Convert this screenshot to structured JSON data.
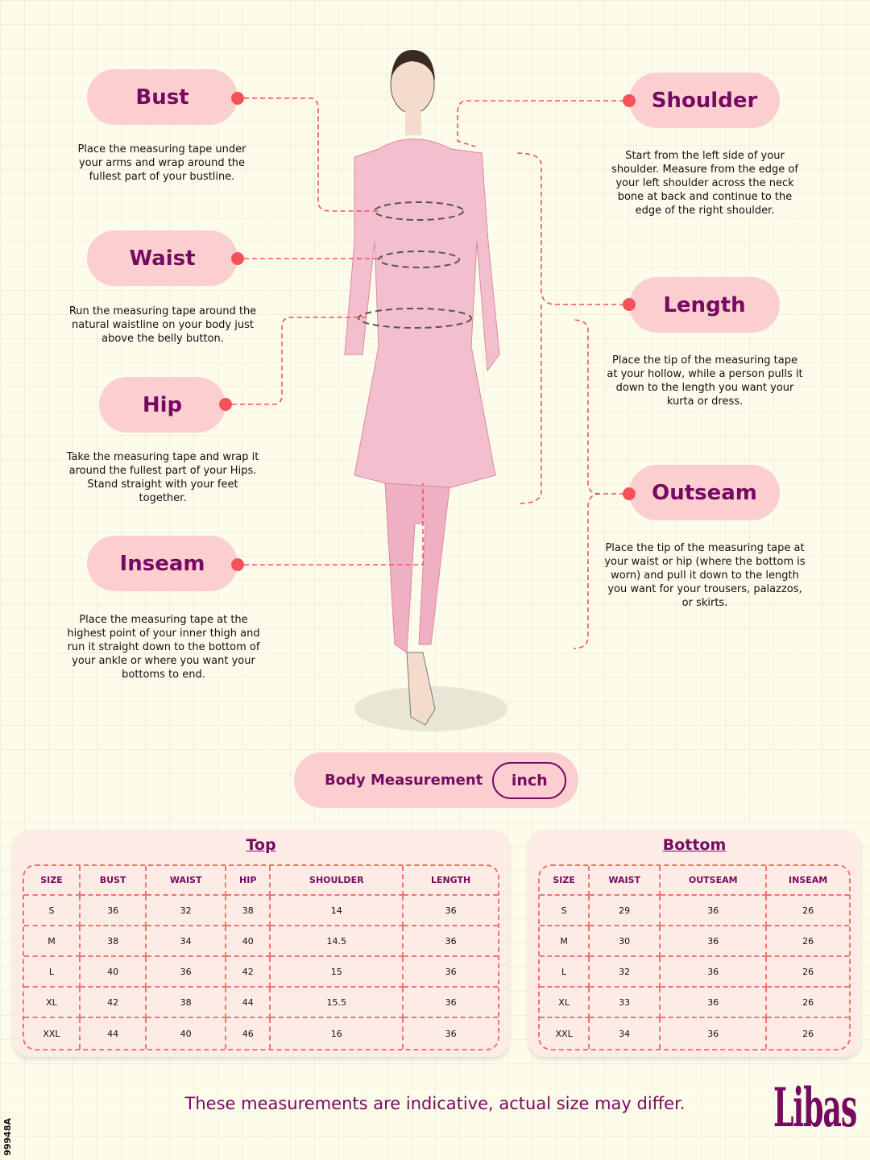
{
  "measurements": {
    "bust": {
      "label": "Bust",
      "text": "Place the measuring tape under your arms and wrap around the fullest part of your bustline."
    },
    "waist": {
      "label": "Waist",
      "text": "Run the measuring tape around the natural waistline on your body just above the belly button."
    },
    "hip": {
      "label": "Hip",
      "text": "Take the measuring tape and wrap it around the fullest part of your Hips. Stand straight with your feet together."
    },
    "inseam": {
      "label": "Inseam",
      "text": "Place the measuring tape at the highest point of your inner thigh and run it straight down to the bottom of your ankle or where you want your bottoms to end."
    },
    "shoulder": {
      "label": "Shoulder",
      "text": "Start from the left side of your shoulder. Measure from the edge of your left shoulder across the neck bone at back and continue to the edge of the right shoulder."
    },
    "length": {
      "label": "Length",
      "text": "Place the tip of the measuring tape at your hollow, while a person pulls it down to the length you want your kurta or dress."
    },
    "outseam": {
      "label": "Outseam",
      "text": "Place the tip of the measuring tape at your waist or hip (where the bottom is worn) and pull it down to the length you want for your trousers, palazzos, or skirts."
    }
  },
  "unit_toggle": {
    "label": "Body Measurement",
    "unit": "inch"
  },
  "top_table": {
    "title": "Top",
    "headers": [
      "SIZE",
      "BUST",
      "WAIST",
      "HIP",
      "SHOULDER",
      "LENGTH"
    ],
    "rows": [
      [
        "S",
        "36",
        "32",
        "38",
        "14",
        "36"
      ],
      [
        "M",
        "38",
        "34",
        "40",
        "14.5",
        "36"
      ],
      [
        "L",
        "40",
        "36",
        "42",
        "15",
        "36"
      ],
      [
        "XL",
        "42",
        "38",
        "44",
        "15.5",
        "36"
      ],
      [
        "XXL",
        "44",
        "40",
        "46",
        "16",
        "36"
      ]
    ]
  },
  "bottom_table": {
    "title": "Bottom",
    "headers": [
      "SIZE",
      "WAIST",
      "OUTSEAM",
      "INSEAM"
    ],
    "rows": [
      [
        "S",
        "29",
        "36",
        "26"
      ],
      [
        "M",
        "30",
        "36",
        "26"
      ],
      [
        "L",
        "32",
        "36",
        "26"
      ],
      [
        "XL",
        "33",
        "36",
        "26"
      ],
      [
        "XXL",
        "34",
        "36",
        "26"
      ]
    ]
  },
  "footer": {
    "note": "These measurements are indicative, actual size may differ.",
    "brand": "Libas",
    "code": "99948A"
  },
  "colors": {
    "accent": "#760a62",
    "pill": "#fbcfd0",
    "line": "#f4525a",
    "background": "#fdfbea"
  }
}
